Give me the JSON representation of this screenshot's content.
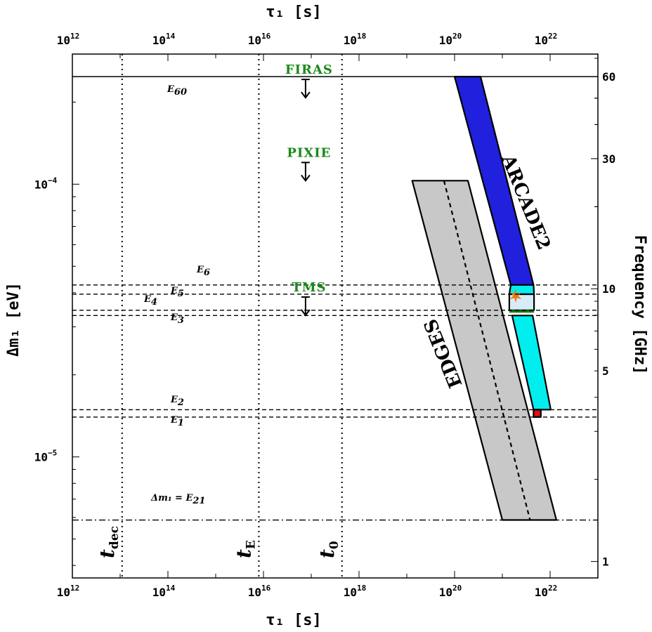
{
  "chart_data": {
    "type": "area",
    "title": "",
    "xlabel": "τ₁ [s]",
    "ylabel": "Δm₁ [eV]",
    "y2label": "Frequency [GHz]",
    "x_scale": "log",
    "y_scale": "log",
    "xlim": [
      1000000000000.0,
      1e+23
    ],
    "ylim": [
      3.6e-06,
      0.0003
    ],
    "x_ticks": [
      {
        "base": "10",
        "exp": "12",
        "value": 1000000000000.0
      },
      {
        "base": "10",
        "exp": "14",
        "value": 100000000000000.0
      },
      {
        "base": "10",
        "exp": "16",
        "value": 1e+16
      },
      {
        "base": "10",
        "exp": "18",
        "value": 1e+18
      },
      {
        "base": "10",
        "exp": "20",
        "value": 1e+20
      },
      {
        "base": "10",
        "exp": "22",
        "value": 1e+22
      }
    ],
    "y_ticks": [
      {
        "base": "10",
        "exp": "−4",
        "value": 0.0001
      },
      {
        "base": "10",
        "exp": "−5",
        "value": 1e-05
      }
    ],
    "y2_ticks": [
      {
        "label": "60",
        "value": 60
      },
      {
        "label": "30",
        "value": 30
      },
      {
        "label": "10",
        "value": 10
      },
      {
        "label": "5",
        "value": 5
      },
      {
        "label": "1",
        "value": 1
      }
    ],
    "hlines": [
      {
        "name": "E",
        "sub": "60",
        "y": 0.000248,
        "style": "solid"
      },
      {
        "name": "E",
        "sub": "6",
        "y": 4.27e-05,
        "style": "dashed"
      },
      {
        "name": "E",
        "sub": "5",
        "y": 3.95e-05,
        "style": "dashed"
      },
      {
        "name": "E",
        "sub": "4",
        "y": 3.45e-05,
        "style": "dashed"
      },
      {
        "name": "E",
        "sub": "3",
        "y": 3.3e-05,
        "style": "dashed"
      },
      {
        "name": "E",
        "sub": "2",
        "y": 1.49e-05,
        "style": "dashed"
      },
      {
        "name": "E",
        "sub": "1",
        "y": 1.4e-05,
        "style": "dashed"
      },
      {
        "name": "Δm₁ = E",
        "sub": "21",
        "y": 5.87e-06,
        "style": "dashdot"
      }
    ],
    "vlines": [
      {
        "name": "t",
        "sub": "dec",
        "x": 11000000000000.0
      },
      {
        "name": "t",
        "sub": "E",
        "x": 8000000000000000.0
      },
      {
        "name": "t",
        "sub": "0",
        "x": 4.4e+17
      }
    ],
    "limits": [
      {
        "name": "FIRAS",
        "x": 9e+16,
        "y": 0.000248
      },
      {
        "name": "PIXIE",
        "x": 9e+16,
        "y": 0.000123
      },
      {
        "name": "TMS",
        "x": 9e+16,
        "y": 3.95e-05
      }
    ],
    "regions": [
      {
        "name": "ARCADE2",
        "color": "#2020dd",
        "polygon": [
          [
            1e+20,
            0.000248
          ],
          [
            3.5e+20,
            0.000248
          ],
          [
            4.5e+21,
            4.27e-05
          ],
          [
            1.5e+21,
            4.27e-05
          ]
        ]
      },
      {
        "name": "",
        "color": "#00eeee",
        "polygon": [
          [
            1.5e+21,
            4.27e-05
          ],
          [
            4.5e+21,
            4.27e-05
          ],
          [
            4.6e+21,
            3.95e-05
          ],
          [
            1.4e+21,
            3.95e-05
          ]
        ]
      },
      {
        "name": "",
        "color": "#d8ecf8",
        "polygon": [
          [
            1.4e+21,
            3.95e-05
          ],
          [
            4.6e+21,
            3.95e-05
          ],
          [
            4.6e+21,
            3.45e-05
          ],
          [
            1.4e+21,
            3.45e-05
          ]
        ]
      },
      {
        "name": "",
        "color": "#00eeee",
        "polygon": [
          [
            1.6e+21,
            3.3e-05
          ],
          [
            4.3e+21,
            3.3e-05
          ],
          [
            1.03e+22,
            1.49e-05
          ],
          [
            4.5e+21,
            1.49e-05
          ]
        ]
      },
      {
        "name": "",
        "color": "#dd1111",
        "polygon": [
          [
            4.5e+21,
            1.49e-05
          ],
          [
            6.4e+21,
            1.49e-05
          ],
          [
            6.4e+21,
            1.4e-05
          ],
          [
            4.5e+21,
            1.4e-05
          ]
        ]
      },
      {
        "name": "EDGES",
        "color": "#c8c8c8",
        "polygon": [
          [
            1.3e+19,
            0.000103
          ],
          [
            1.9e+20,
            0.000103
          ],
          [
            1.35e+22,
            5.87e-06
          ],
          [
            1e+21,
            5.87e-06
          ]
        ],
        "centerline": [
          [
            6e+19,
            0.000103
          ],
          [
            3.8e+21,
            5.87e-06
          ]
        ]
      }
    ],
    "markers": [
      {
        "name": "ARCADE2 best fit",
        "x": 1.9e+21,
        "y": 3.9e-05,
        "shape": "star",
        "color": "#ee7711"
      }
    ],
    "green_line": {
      "y": 3.42e-05,
      "x0": 1.4e+21,
      "x1": 4.6e+21,
      "color": "#117711"
    },
    "grid": false,
    "legend": "none"
  }
}
